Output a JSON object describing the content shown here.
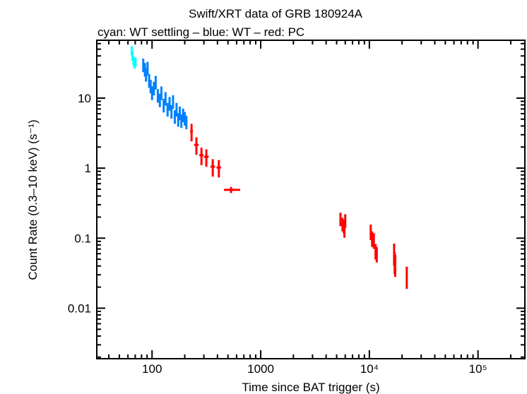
{
  "chart_data": {
    "type": "scatter",
    "title": "Swift/XRT data of GRB 180924A",
    "subtitle": "cyan: WT settling – blue: WT – red: PC",
    "xlabel": "Time since BAT trigger (s)",
    "ylabel": "Count Rate (0.3–10 keV) (s⁻¹)",
    "xscale": "log",
    "yscale": "log",
    "xlim": [
      31,
      270000
    ],
    "ylim": [
      0.0019,
      67
    ],
    "xticks": [
      {
        "v": 100,
        "label": "100"
      },
      {
        "v": 1000,
        "label": "1000"
      },
      {
        "v": 10000,
        "label": "10⁴"
      },
      {
        "v": 100000,
        "label": "10⁵"
      }
    ],
    "yticks": [
      {
        "v": 0.01,
        "label": "0.01"
      },
      {
        "v": 0.1,
        "label": "0.1"
      },
      {
        "v": 1,
        "label": "1"
      },
      {
        "v": 10,
        "label": "10"
      }
    ],
    "grid": false,
    "series": [
      {
        "mode": "WT settling",
        "color": "#00ffff",
        "points": [
          {
            "t": 65,
            "r": 48,
            "f": 0.15
          },
          {
            "t": 66,
            "r": 40,
            "f": 0.15
          },
          {
            "t": 67.5,
            "r": 34,
            "f": 0.15
          },
          {
            "t": 69,
            "r": 31,
            "f": 0.15
          },
          {
            "t": 70.5,
            "r": 33,
            "f": 0.15
          }
        ]
      },
      {
        "mode": "WT",
        "color": "#0080ff",
        "points": [
          {
            "t": 83,
            "r": 30,
            "f": 0.22
          },
          {
            "t": 86,
            "r": 26,
            "f": 0.22
          },
          {
            "t": 88,
            "r": 22,
            "f": 0.22
          },
          {
            "t": 91,
            "r": 27,
            "f": 0.22
          },
          {
            "t": 94,
            "r": 18,
            "f": 0.22
          },
          {
            "t": 97,
            "r": 15,
            "f": 0.22
          },
          {
            "t": 100,
            "r": 12,
            "f": 0.22
          },
          {
            "t": 104,
            "r": 14,
            "f": 0.22
          },
          {
            "t": 108,
            "r": 17,
            "f": 0.22
          },
          {
            "t": 113,
            "r": 11,
            "f": 0.22
          },
          {
            "t": 118,
            "r": 9.5,
            "f": 0.22
          },
          {
            "t": 122,
            "r": 12,
            "f": 0.22
          },
          {
            "t": 128,
            "r": 8.0,
            "f": 0.22
          },
          {
            "t": 133,
            "r": 10,
            "f": 0.22
          },
          {
            "t": 139,
            "r": 7.0,
            "f": 0.22
          },
          {
            "t": 145,
            "r": 8.5,
            "f": 0.22
          },
          {
            "t": 151,
            "r": 6.5,
            "f": 0.22
          },
          {
            "t": 156,
            "r": 9.0,
            "f": 0.22
          },
          {
            "t": 162,
            "r": 5.5,
            "f": 0.22
          },
          {
            "t": 168,
            "r": 7.0,
            "f": 0.22
          },
          {
            "t": 174,
            "r": 5.0,
            "f": 0.22
          },
          {
            "t": 180,
            "r": 6.2,
            "f": 0.22
          },
          {
            "t": 186,
            "r": 4.8,
            "f": 0.22
          },
          {
            "t": 193,
            "r": 5.8,
            "f": 0.22
          },
          {
            "t": 200,
            "r": 5.2,
            "f": 0.22
          },
          {
            "t": 207,
            "r": 4.6,
            "f": 0.22
          }
        ]
      },
      {
        "mode": "PC",
        "color": "#ff0000",
        "points": [
          {
            "t": 231,
            "r": 3.35,
            "lo": 224,
            "hi": 238,
            "f": 0.28
          },
          {
            "t": 256,
            "r": 2.15,
            "lo": 244,
            "hi": 268,
            "f": 0.28
          },
          {
            "t": 285,
            "r": 1.53,
            "lo": 272,
            "hi": 297,
            "f": 0.28
          },
          {
            "t": 316,
            "r": 1.45,
            "lo": 300,
            "hi": 332,
            "f": 0.28
          },
          {
            "t": 362,
            "r": 1.05,
            "lo": 345,
            "hi": 380,
            "f": 0.28
          },
          {
            "t": 412,
            "r": 1.02,
            "lo": 392,
            "hi": 432,
            "f": 0.28
          },
          {
            "t": 533,
            "r": 0.49,
            "lo": 459,
            "hi": 647,
            "f": 0.1
          },
          {
            "t": 5420,
            "r": 0.19,
            "lo": 5380,
            "hi": 5460,
            "f": 0.22
          },
          {
            "t": 5660,
            "r": 0.16,
            "lo": 5620,
            "hi": 5700,
            "f": 0.22
          },
          {
            "t": 5820,
            "r": 0.15,
            "lo": 5780,
            "hi": 5860,
            "f": 0.22
          },
          {
            "t": 6000,
            "r": 0.18,
            "lo": 5960,
            "hi": 6040,
            "f": 0.22
          },
          {
            "t": 5900,
            "r": 0.13,
            "lo": 5860,
            "hi": 5940,
            "f": 0.22
          },
          {
            "t": 10300,
            "r": 0.125,
            "lo": 10200,
            "hi": 10400,
            "f": 0.25
          },
          {
            "t": 10600,
            "r": 0.1,
            "lo": 10500,
            "hi": 10700,
            "f": 0.25
          },
          {
            "t": 11000,
            "r": 0.094,
            "lo": 10900,
            "hi": 11100,
            "f": 0.25
          },
          {
            "t": 11400,
            "r": 0.066,
            "lo": 11300,
            "hi": 11500,
            "f": 0.25
          },
          {
            "t": 11700,
            "r": 0.06,
            "lo": 11600,
            "hi": 11800,
            "f": 0.25
          },
          {
            "t": 16900,
            "r": 0.062,
            "lo": 16800,
            "hi": 17000,
            "f": 0.35
          },
          {
            "t": 17100,
            "r": 0.047,
            "lo": 17000,
            "hi": 17200,
            "f": 0.35
          },
          {
            "t": 17300,
            "r": 0.043,
            "lo": 17200,
            "hi": 17400,
            "f": 0.35
          },
          {
            "t": 22100,
            "r": 0.029,
            "lo": 21800,
            "hi": 22400,
            "f": 0.35
          }
        ]
      }
    ]
  }
}
